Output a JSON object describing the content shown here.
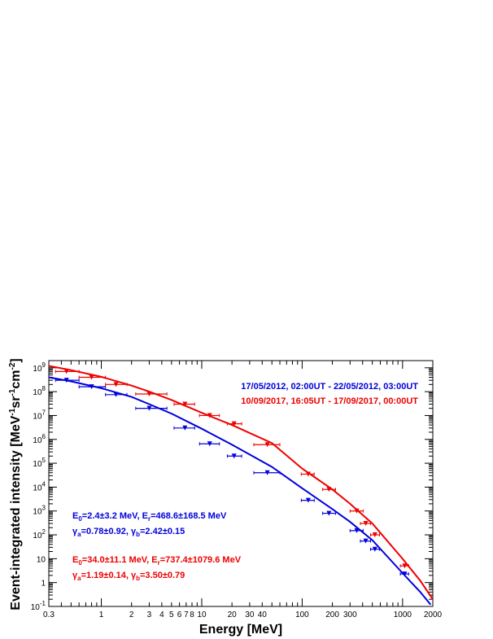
{
  "chart_data": {
    "type": "scatter",
    "xlabel": "Energy [MeV]",
    "ylabel_parts": {
      "lead": "Event-integrated intensity [MeV",
      "e1": "-1",
      "mid1": "sr",
      "e2": "-1",
      "mid2": "cm",
      "e3": "-2",
      "tail": "]"
    },
    "xscale": "log",
    "yscale": "log",
    "xlim": [
      0.3,
      2000
    ],
    "ylim": [
      0.1,
      2000000000
    ],
    "grid": false,
    "legend_position": "top-right",
    "x_tick_labels": [
      {
        "v": 0.3,
        "t": "0.3"
      },
      {
        "v": 1,
        "t": "1"
      },
      {
        "v": 2,
        "t": "2"
      },
      {
        "v": 3,
        "t": "3"
      },
      {
        "v": 4,
        "t": "4"
      },
      {
        "v": 5,
        "t": "5"
      },
      {
        "v": 6,
        "t": "6"
      },
      {
        "v": 7,
        "t": "7"
      },
      {
        "v": 8,
        "t": "8"
      },
      {
        "v": 10,
        "t": "10"
      },
      {
        "v": 20,
        "t": "20"
      },
      {
        "v": 30,
        "t": "30"
      },
      {
        "v": 40,
        "t": "40"
      },
      {
        "v": 100,
        "t": "100"
      },
      {
        "v": 200,
        "t": "200"
      },
      {
        "v": 300,
        "t": "300"
      },
      {
        "v": 1000,
        "t": "1000"
      },
      {
        "v": 2000,
        "t": "2000"
      }
    ],
    "y_tick_labels": [
      {
        "v": 0.1,
        "t": "10",
        "sup": "-1"
      },
      {
        "v": 1,
        "t": "1",
        "sup": ""
      },
      {
        "v": 10,
        "t": "10",
        "sup": ""
      },
      {
        "v": 100,
        "t": "10",
        "sup": "2"
      },
      {
        "v": 1000,
        "t": "10",
        "sup": "3"
      },
      {
        "v": 10000,
        "t": "10",
        "sup": "4"
      },
      {
        "v": 100000,
        "t": "10",
        "sup": "5"
      },
      {
        "v": 1000000,
        "t": "10",
        "sup": "6"
      },
      {
        "v": 10000000,
        "t": "10",
        "sup": "7"
      },
      {
        "v": 100000000,
        "t": "10",
        "sup": "8"
      },
      {
        "v": 1000000000,
        "t": "10",
        "sup": "9"
      }
    ],
    "colors": {
      "blue": "#0000dd",
      "red": "#ee0000"
    },
    "series": [
      {
        "name": "17/05/2012, 02:00UT - 22/05/2012, 03:00UT",
        "color": "#0000dd",
        "points": [
          {
            "x": 0.45,
            "y": 300000000,
            "xlo": 0.35,
            "xhi": 0.6
          },
          {
            "x": 0.8,
            "y": 160000000,
            "xlo": 0.6,
            "xhi": 1.1
          },
          {
            "x": 1.4,
            "y": 75000000,
            "xlo": 1.1,
            "xhi": 1.8
          },
          {
            "x": 3.0,
            "y": 20000000,
            "xlo": 2.2,
            "xhi": 4.5
          },
          {
            "x": 6.8,
            "y": 3000000,
            "xlo": 5.3,
            "xhi": 8.5
          },
          {
            "x": 12.0,
            "y": 650000,
            "xlo": 9.5,
            "xhi": 15.0
          },
          {
            "x": 21.0,
            "y": 200000,
            "xlo": 18.0,
            "xhi": 25.0
          },
          {
            "x": 45.0,
            "y": 40000,
            "xlo": 33.0,
            "xhi": 60.0
          },
          {
            "x": 115.0,
            "y": 2800,
            "xlo": 98.0,
            "xhi": 132.0
          },
          {
            "x": 185.0,
            "y": 800,
            "xlo": 160.0,
            "xhi": 215.0
          },
          {
            "x": 350.0,
            "y": 150,
            "xlo": 300.0,
            "xhi": 405.0
          },
          {
            "x": 430.0,
            "y": 55,
            "xlo": 380.0,
            "xhi": 480.0
          },
          {
            "x": 530.0,
            "y": 25,
            "xlo": 480.0,
            "xhi": 590.0
          },
          {
            "x": 1050.0,
            "y": 2.3,
            "xlo": 950.0,
            "xhi": 1150.0
          }
        ],
        "fit": {
          "label_E": "E",
          "sub_0": "0",
          "E0": "=2.4±3.2 MeV, E",
          "sub_r": "r",
          "Er": "=468.6±168.5 MeV",
          "g": "γ",
          "sub_a": "a",
          "ga": "=0.78±0.92, ",
          "sub_b": "b",
          "gb": "=2.42±0.15",
          "E0_value": 2.4,
          "Er_value": 468.6,
          "gamma_a": 0.78,
          "gamma_b": 2.42
        }
      },
      {
        "name": "10/09/2017, 16:05UT - 17/09/2017, 00:00UT",
        "color": "#ee0000",
        "points": [
          {
            "x": 0.45,
            "y": 700000000,
            "xlo": 0.35,
            "xhi": 0.6
          },
          {
            "x": 0.8,
            "y": 400000000,
            "xlo": 0.6,
            "xhi": 1.1
          },
          {
            "x": 1.4,
            "y": 200000000,
            "xlo": 1.1,
            "xhi": 1.8
          },
          {
            "x": 3.0,
            "y": 80000000,
            "xlo": 2.2,
            "xhi": 4.5
          },
          {
            "x": 6.8,
            "y": 30000000,
            "xlo": 5.3,
            "xhi": 8.5
          },
          {
            "x": 12.0,
            "y": 10000000,
            "xlo": 9.5,
            "xhi": 15.0
          },
          {
            "x": 21.0,
            "y": 4500000,
            "xlo": 18.0,
            "xhi": 25.0
          },
          {
            "x": 45.0,
            "y": 600000,
            "xlo": 33.0,
            "xhi": 60.0
          },
          {
            "x": 115.0,
            "y": 35000,
            "xlo": 98.0,
            "xhi": 132.0
          },
          {
            "x": 185.0,
            "y": 8000,
            "xlo": 160.0,
            "xhi": 215.0
          },
          {
            "x": 350.0,
            "y": 1000,
            "xlo": 300.0,
            "xhi": 405.0
          },
          {
            "x": 430.0,
            "y": 300,
            "xlo": 380.0,
            "xhi": 480.0
          },
          {
            "x": 530.0,
            "y": 100,
            "xlo": 480.0,
            "xhi": 590.0
          },
          {
            "x": 1050.0,
            "y": 5.0,
            "xlo": 950.0,
            "xhi": 1150.0
          }
        ],
        "fit": {
          "label_E": "E",
          "sub_0": "0",
          "E0": "=34.0±11.1 MeV, E",
          "sub_r": "r",
          "Er": "=737.4±1079.6 MeV",
          "g": "γ",
          "sub_a": "a",
          "ga": "=1.19±0.14, ",
          "sub_b": "b",
          "gb": "=3.50±0.79",
          "E0_value": 34.0,
          "Er_value": 737.4,
          "gamma_a": 1.19,
          "gamma_b": 3.5
        }
      }
    ],
    "fit_curves": [
      {
        "color": "#0000dd",
        "x": [
          0.3,
          0.5,
          1,
          2,
          3,
          5,
          10,
          20,
          50,
          100,
          200,
          300,
          500,
          1000,
          1500,
          1900
        ],
        "y": [
          400000000,
          270000000,
          140000000,
          60000000,
          30000000,
          12000000,
          2800000,
          600000,
          70000,
          9000,
          1200,
          350,
          60,
          2.5,
          0.4,
          0.12
        ]
      },
      {
        "color": "#ee0000",
        "x": [
          0.3,
          0.5,
          1,
          2,
          3,
          5,
          10,
          20,
          50,
          100,
          200,
          300,
          500,
          1000,
          1500,
          2000
        ],
        "y": [
          1200000000,
          800000000,
          420000000,
          180000000,
          100000000,
          45000000,
          13000000,
          4000000,
          700000,
          60000,
          8000,
          2000,
          300,
          10,
          1.2,
          0.2
        ]
      }
    ]
  }
}
